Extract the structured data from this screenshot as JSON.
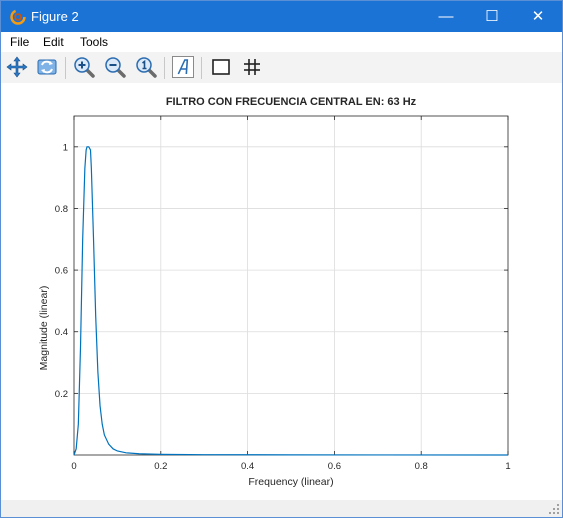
{
  "window": {
    "title": "Figure 2",
    "minimize_glyph": "—",
    "maximize_glyph": "☐",
    "close_glyph": "✕"
  },
  "menu": {
    "items": [
      "File",
      "Edit",
      "Tools"
    ]
  },
  "toolbar": {
    "buttons": [
      "pan-icon",
      "rotate-icon",
      "zoom-in-icon",
      "zoom-out-icon",
      "zoom-reset-icon",
      "insert-text-icon",
      "box-icon",
      "grid-icon"
    ]
  },
  "chart_data": {
    "type": "line",
    "title": "FILTRO CON FRECUENCIA CENTRAL EN:  63 Hz",
    "xlabel": "Frequency (linear)",
    "ylabel": "Magnitude (linear)",
    "xlim": [
      0,
      1
    ],
    "ylim": [
      0,
      1.1
    ],
    "xticks": [
      0,
      0.2,
      0.4,
      0.6,
      0.8,
      1
    ],
    "xtick_labels": [
      "0",
      "0.2",
      "0.4",
      "0.6",
      "0.8",
      "1"
    ],
    "yticks": [
      0.2,
      0.4,
      0.6,
      0.8,
      1
    ],
    "ytick_labels": [
      "0.2",
      "0.4",
      "0.6",
      "0.8",
      "1"
    ],
    "grid": true,
    "series": [
      {
        "color": "#0072bd",
        "x": [
          0,
          0.005,
          0.01,
          0.015,
          0.02,
          0.025,
          0.028,
          0.03,
          0.034,
          0.038,
          0.04,
          0.045,
          0.05,
          0.055,
          0.06,
          0.065,
          0.07,
          0.08,
          0.09,
          0.1,
          0.12,
          0.15,
          0.2,
          0.3,
          0.5,
          0.7,
          1.0
        ],
        "y": [
          0,
          0.02,
          0.1,
          0.35,
          0.7,
          0.93,
          0.99,
          1.0,
          1.0,
          0.99,
          0.93,
          0.7,
          0.45,
          0.27,
          0.16,
          0.1,
          0.065,
          0.035,
          0.02,
          0.013,
          0.007,
          0.004,
          0.002,
          0.001,
          0.0005,
          0.0002,
          0
        ]
      }
    ]
  }
}
